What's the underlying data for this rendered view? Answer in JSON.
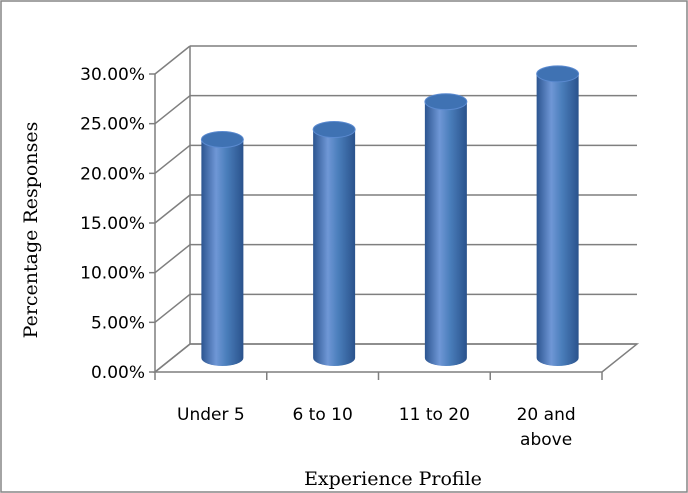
{
  "chart_data": {
    "type": "bar",
    "style": "3d-cylinder",
    "categories": [
      [
        "Under 5"
      ],
      [
        "6 to 10"
      ],
      [
        "11 to 20"
      ],
      [
        "20 and",
        "above"
      ]
    ],
    "values": [
      0.22,
      0.23,
      0.258,
      0.286
    ],
    "ylim": [
      0,
      0.3
    ],
    "yticks": [
      "0.00%",
      "5.00%",
      "10.00%",
      "15.00%",
      "20.00%",
      "25.00%",
      "30.00%"
    ],
    "xlabel": "Experience Profile",
    "ylabel": "Percentage Responses",
    "grid": true,
    "legend": "none",
    "colors": {
      "bar_light": "#6f97d6",
      "bar_mid": "#4a7ebb",
      "bar_dark": "#2c5590",
      "bar_top": "#3f72b3",
      "grid": "#7f7f7f",
      "frame": "#868686"
    }
  }
}
